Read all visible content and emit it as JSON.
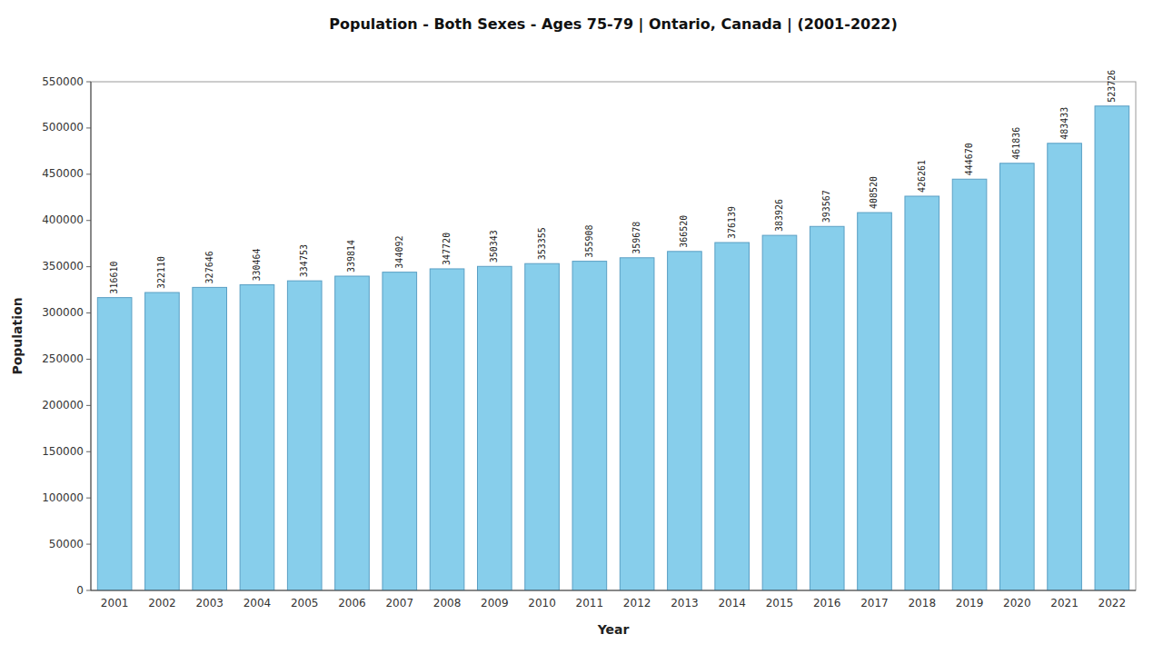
{
  "chart_data": {
    "type": "bar",
    "title": "Population - Both Sexes - Ages 75-79 | Ontario, Canada |  (2001-2022)",
    "xlabel": "Year",
    "ylabel": "Population",
    "categories": [
      "2001",
      "2002",
      "2003",
      "2004",
      "2005",
      "2006",
      "2007",
      "2008",
      "2009",
      "2010",
      "2011",
      "2012",
      "2013",
      "2014",
      "2015",
      "2016",
      "2017",
      "2018",
      "2019",
      "2020",
      "2021",
      "2022"
    ],
    "values": [
      316610,
      322110,
      327646,
      330464,
      334753,
      339814,
      344092,
      347720,
      350343,
      353355,
      355908,
      359678,
      366520,
      376139,
      383926,
      393567,
      408520,
      426261,
      444670,
      461836,
      483433,
      523726
    ],
    "color": "#87CEEB",
    "ylim": [
      0,
      550000
    ],
    "yticks": [
      0,
      50000,
      100000,
      150000,
      200000,
      250000,
      300000,
      350000,
      400000,
      450000,
      500000,
      550000
    ],
    "grid": false,
    "data_labels": true
  }
}
